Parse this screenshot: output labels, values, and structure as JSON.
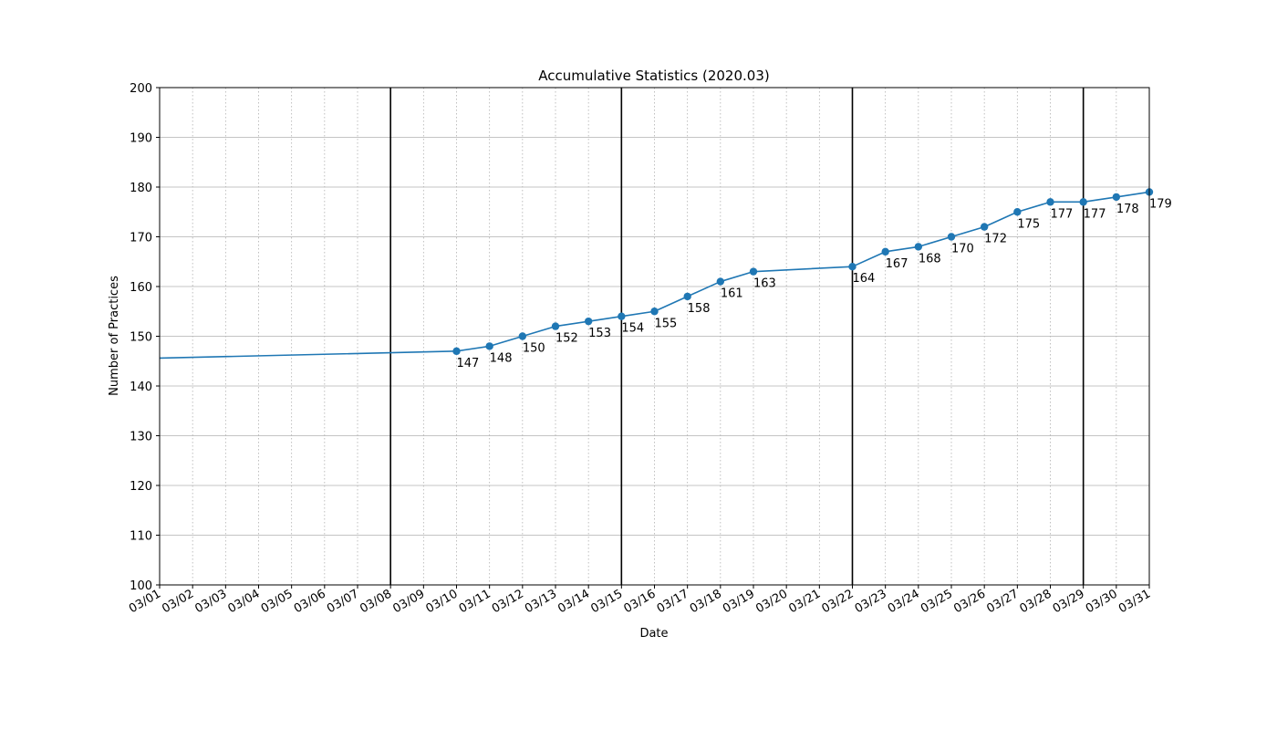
{
  "chart_data": {
    "type": "line",
    "title": "Accumulative Statistics (2020.03)",
    "xlabel": "Date",
    "ylabel": "Number of Practices",
    "ylim": [
      100,
      200
    ],
    "yticks": [
      100,
      110,
      120,
      130,
      140,
      150,
      160,
      170,
      180,
      190,
      200
    ],
    "xlim": [
      "03/01",
      "03/31"
    ],
    "xticks": [
      "03/01",
      "03/02",
      "03/03",
      "03/04",
      "03/05",
      "03/06",
      "03/07",
      "03/08",
      "03/09",
      "03/10",
      "03/11",
      "03/12",
      "03/13",
      "03/14",
      "03/15",
      "03/16",
      "03/17",
      "03/18",
      "03/19",
      "03/20",
      "03/21",
      "03/22",
      "03/23",
      "03/24",
      "03/25",
      "03/26",
      "03/27",
      "03/28",
      "03/29",
      "03/30",
      "03/31"
    ],
    "week_markers": [
      "03/08",
      "03/15",
      "03/22",
      "03/29"
    ],
    "grid": {
      "y": true,
      "x": "dotted"
    },
    "series_color": "#1f77b4",
    "line_start": {
      "x": "03/01",
      "y": 145.6
    },
    "points": [
      {
        "x": "03/10",
        "y": 147
      },
      {
        "x": "03/11",
        "y": 148
      },
      {
        "x": "03/12",
        "y": 150
      },
      {
        "x": "03/13",
        "y": 152
      },
      {
        "x": "03/14",
        "y": 153
      },
      {
        "x": "03/15",
        "y": 154
      },
      {
        "x": "03/16",
        "y": 155
      },
      {
        "x": "03/17",
        "y": 158
      },
      {
        "x": "03/18",
        "y": 161
      },
      {
        "x": "03/19",
        "y": 163
      },
      {
        "x": "03/22",
        "y": 164
      },
      {
        "x": "03/23",
        "y": 167
      },
      {
        "x": "03/24",
        "y": 168
      },
      {
        "x": "03/25",
        "y": 170
      },
      {
        "x": "03/26",
        "y": 172
      },
      {
        "x": "03/27",
        "y": 175
      },
      {
        "x": "03/28",
        "y": 177
      },
      {
        "x": "03/29",
        "y": 177
      },
      {
        "x": "03/30",
        "y": 178
      },
      {
        "x": "03/31",
        "y": 179
      }
    ]
  }
}
